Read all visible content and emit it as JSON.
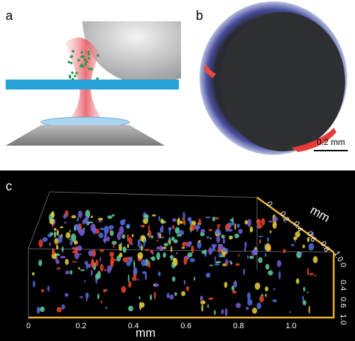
{
  "panels": {
    "a": {
      "label": "a"
    },
    "b": {
      "label": "b",
      "scale_bar": "0.2 mm"
    },
    "c": {
      "label": "c",
      "x_axis": {
        "ticks": [
          "0",
          "0.2",
          "0.4",
          "0.6",
          "0.8",
          "1.0"
        ],
        "unit": "mm"
      },
      "y_axis": {
        "ticks": [
          "0",
          "0.2",
          "0.4",
          "0.6",
          "0.8",
          "1.0"
        ],
        "unit": "mm"
      },
      "z_axis": {
        "ticks": [
          "0",
          "0.4",
          "0.6",
          "1.0"
        ]
      }
    }
  }
}
